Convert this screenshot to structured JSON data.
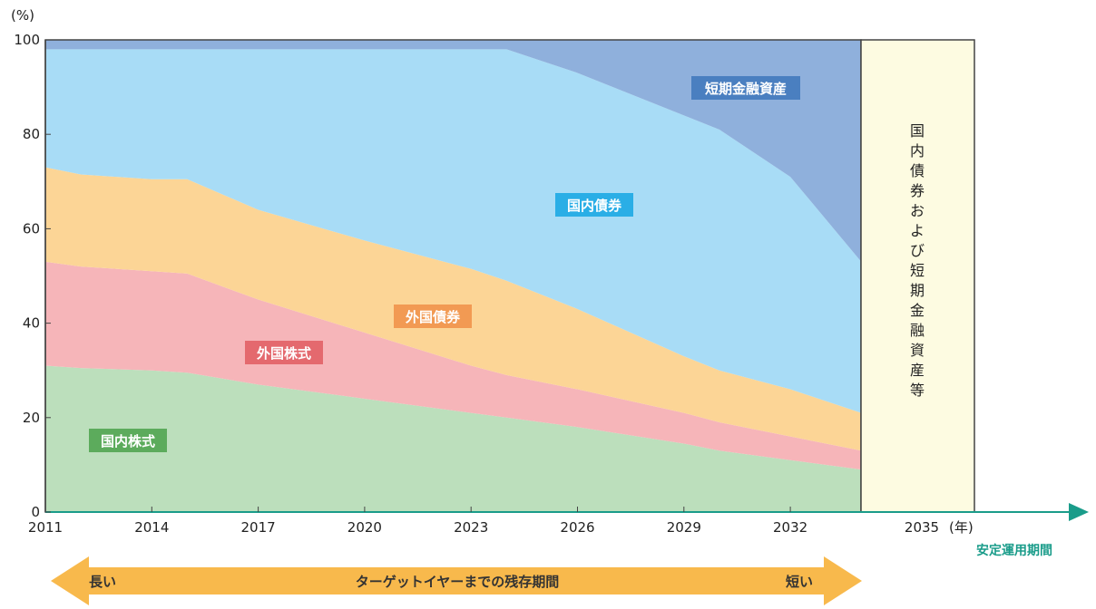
{
  "chart_data": {
    "type": "area",
    "stacked": true,
    "x": [
      2011,
      2012,
      2014,
      2015,
      2017,
      2020,
      2023,
      2024,
      2026,
      2029,
      2030,
      2032,
      2034
    ],
    "series": [
      {
        "name": "国内株式",
        "color": "#bcdfbc",
        "tag_color": "#5cab5c",
        "values": [
          31,
          30.5,
          30,
          29.5,
          27,
          24,
          21,
          20,
          18,
          14.5,
          13,
          11,
          9
        ]
      },
      {
        "name": "外国株式",
        "color": "#f6b5b9",
        "tag_color": "#e4696e",
        "values": [
          22,
          21.5,
          21,
          21,
          18,
          14,
          10,
          9,
          8,
          6.5,
          6,
          5,
          4
        ]
      },
      {
        "name": "外国債券",
        "color": "#fcd596",
        "tag_color": "#f29a53",
        "values": [
          20,
          19.5,
          19.5,
          20,
          19,
          19.5,
          20.5,
          20,
          17,
          12,
          11,
          10,
          8
        ]
      },
      {
        "name": "国内債券",
        "color": "#a8dcf6",
        "tag_color": "#2aaee6",
        "values": [
          25,
          26.5,
          27.5,
          27.5,
          34,
          40.5,
          46.5,
          49,
          50,
          51,
          51,
          45,
          32
        ]
      },
      {
        "name": "短期金融資産",
        "color": "#8fb0dc",
        "tag_color": "#4a7fc0",
        "values": [
          2,
          2,
          2,
          2,
          2,
          2,
          2,
          2,
          7,
          16,
          19,
          29,
          47
        ]
      }
    ],
    "xticks": [
      "2011",
      "2014",
      "2017",
      "2020",
      "2023",
      "2026",
      "2029",
      "2032",
      "2035"
    ],
    "xtick_values": [
      2011,
      2014,
      2017,
      2020,
      2023,
      2026,
      2029,
      2032,
      2035
    ],
    "yticks": [
      "0",
      "20",
      "40",
      "60",
      "80",
      "100"
    ],
    "ylim": [
      0,
      100
    ],
    "xlim": [
      2011,
      2034
    ],
    "ylabel": "(%)",
    "xlabel": "(年)",
    "stable_band_label": "国内債券および短期金融資産等",
    "stable_period_label": "安定運用期間",
    "remaining_label": "ターゲットイヤーまでの残存期間",
    "long_label": "長い",
    "short_label": "短い",
    "grid": false,
    "legend": "inline-labels"
  }
}
